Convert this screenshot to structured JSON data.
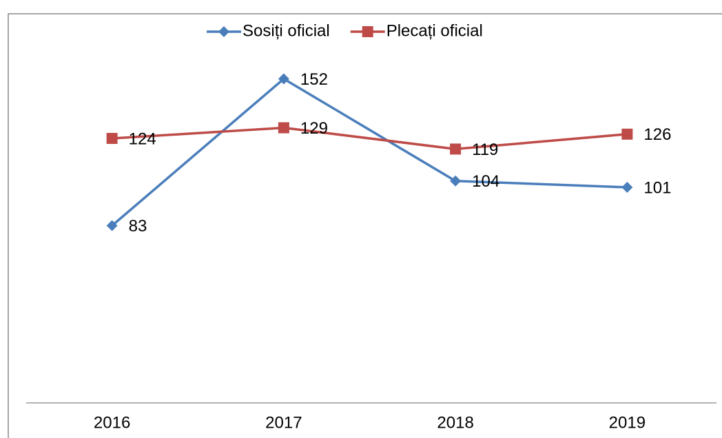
{
  "chart_data": {
    "type": "line",
    "categories": [
      "2016",
      "2017",
      "2018",
      "2019"
    ],
    "series": [
      {
        "name": "Sosiți oficial",
        "color": "#4a7ebb",
        "marker": "diamond",
        "values": [
          83,
          152,
          104,
          101
        ]
      },
      {
        "name": "Plecați oficial",
        "color": "#be4b48",
        "marker": "square",
        "values": [
          124,
          129,
          119,
          126
        ]
      }
    ],
    "ylim": [
      0,
      180
    ],
    "legend": "top"
  }
}
